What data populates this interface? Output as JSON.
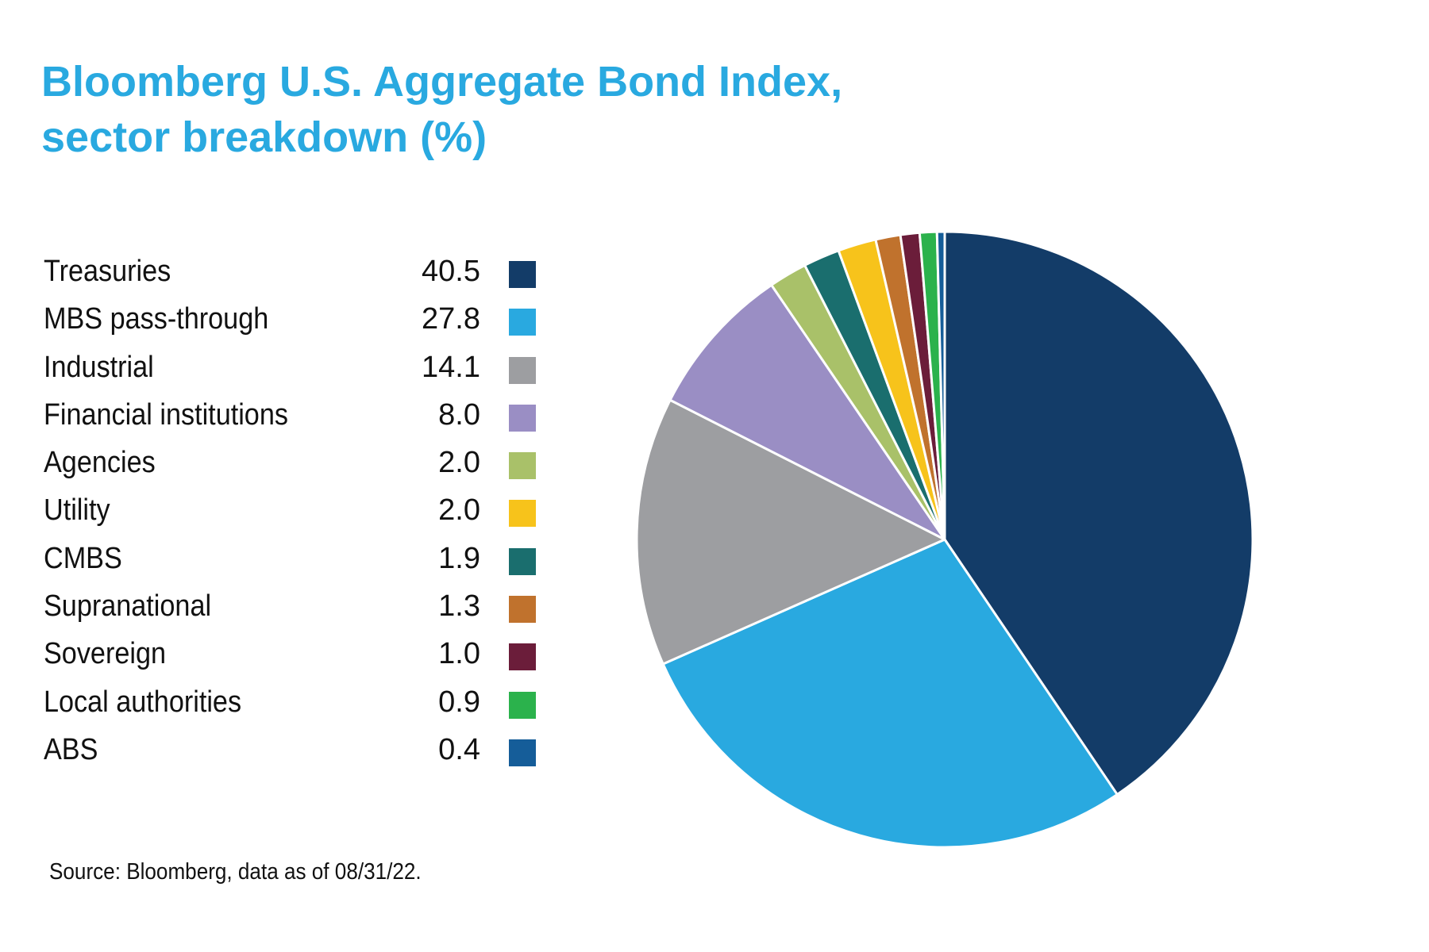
{
  "chart_data": {
    "type": "pie",
    "title": "Bloomberg U.S. Aggregate Bond Index, sector breakdown (%)",
    "title_lines": [
      "Bloomberg U.S. Aggregate Bond Index,",
      "sector breakdown (%)"
    ],
    "source": "Source: Bloomberg, data as of 08/31/22.",
    "legend_position": "left",
    "slices": [
      {
        "label": "Treasuries",
        "value": 40.5,
        "display": "40.5",
        "color": "#133c68"
      },
      {
        "label": "MBS pass-through",
        "value": 27.8,
        "display": "27.8",
        "color": "#29a9e0"
      },
      {
        "label": "Industrial",
        "value": 14.1,
        "display": "14.1",
        "color": "#9d9ea1"
      },
      {
        "label": "Financial institutions",
        "value": 8.0,
        "display": "8.0",
        "color": "#9a8ec4"
      },
      {
        "label": "Agencies",
        "value": 2.0,
        "display": "2.0",
        "color": "#a9c169"
      },
      {
        "label": "CMBS",
        "value": 1.9,
        "display": "1.9",
        "color": "#1a6e6e"
      },
      {
        "label": "Utility",
        "value": 2.0,
        "display": "2.0",
        "color": "#f7c31b"
      },
      {
        "label": "Supranational",
        "value": 1.3,
        "display": "1.3",
        "color": "#c0722d"
      },
      {
        "label": "Sovereign",
        "value": 1.0,
        "display": "1.0",
        "color": "#6b1d3a"
      },
      {
        "label": "Local authorities",
        "value": 0.9,
        "display": "0.9",
        "color": "#2bb24c"
      },
      {
        "label": "ABS",
        "value": 0.4,
        "display": "0.4",
        "color": "#155d99"
      }
    ],
    "legend_order": [
      "Treasuries",
      "MBS pass-through",
      "Industrial",
      "Financial institutions",
      "Agencies",
      "Utility",
      "CMBS",
      "Supranational",
      "Sovereign",
      "Local authorities",
      "ABS"
    ]
  }
}
